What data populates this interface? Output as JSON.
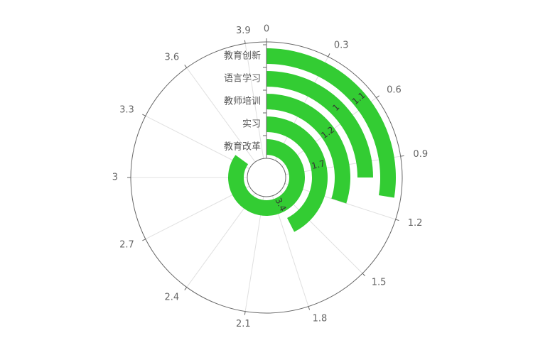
{
  "chart_data": {
    "type": "bar",
    "subtype": "polar-radial-bar",
    "categories": [
      "教育改革",
      "实习",
      "教师培训",
      "语言学习",
      "教育创新"
    ],
    "values": [
      3.4,
      1.7,
      1.2,
      1.0,
      1.1
    ],
    "data_labels": [
      "3.4",
      "1.7",
      "1.2",
      "1",
      "1.1"
    ],
    "angle_axis": {
      "min": 0,
      "max": 4.0,
      "ticks": [
        "0",
        "0.3",
        "0.6",
        "0.9",
        "1.2",
        "1.5",
        "1.8",
        "2.1",
        "2.4",
        "2.7",
        "3",
        "3.3",
        "3.6",
        "3.9"
      ],
      "tick_values": [
        0,
        0.3,
        0.6,
        0.9,
        1.2,
        1.5,
        1.8,
        2.1,
        2.4,
        2.7,
        3.0,
        3.3,
        3.6,
        3.9
      ],
      "clockwise": true
    },
    "grid": true,
    "legend": "none",
    "colors": {
      "bar": "#33cc33",
      "axis": "#666666",
      "grid": "#e0e0e0",
      "label": "#333333"
    }
  }
}
